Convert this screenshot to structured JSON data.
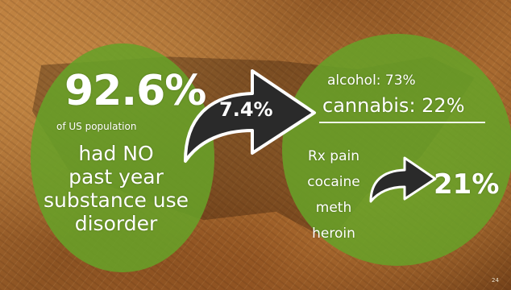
{
  "left_circle": {
    "percent": "92.6%",
    "subtitle": "of US population",
    "lines": [
      "had NO",
      "past year",
      "substance use",
      "disorder"
    ]
  },
  "big_arrow": {
    "label": "7.4%"
  },
  "right_circle": {
    "alcohol": "alcohol: 73%",
    "cannabis": "cannabis: 22%",
    "drugs": [
      "Rx pain",
      "cocaine",
      "meth",
      "heroin"
    ],
    "small_arrow_label": "21%"
  },
  "page_number": "24",
  "colors": {
    "circle_green": "#68a028",
    "arrow_dark": "#2a2a2a",
    "text": "#ffffff",
    "background": "#9a5f2a"
  },
  "icons": {
    "big_arrow": "curved-arrow-right-icon",
    "small_arrow": "curved-arrow-right-icon"
  }
}
